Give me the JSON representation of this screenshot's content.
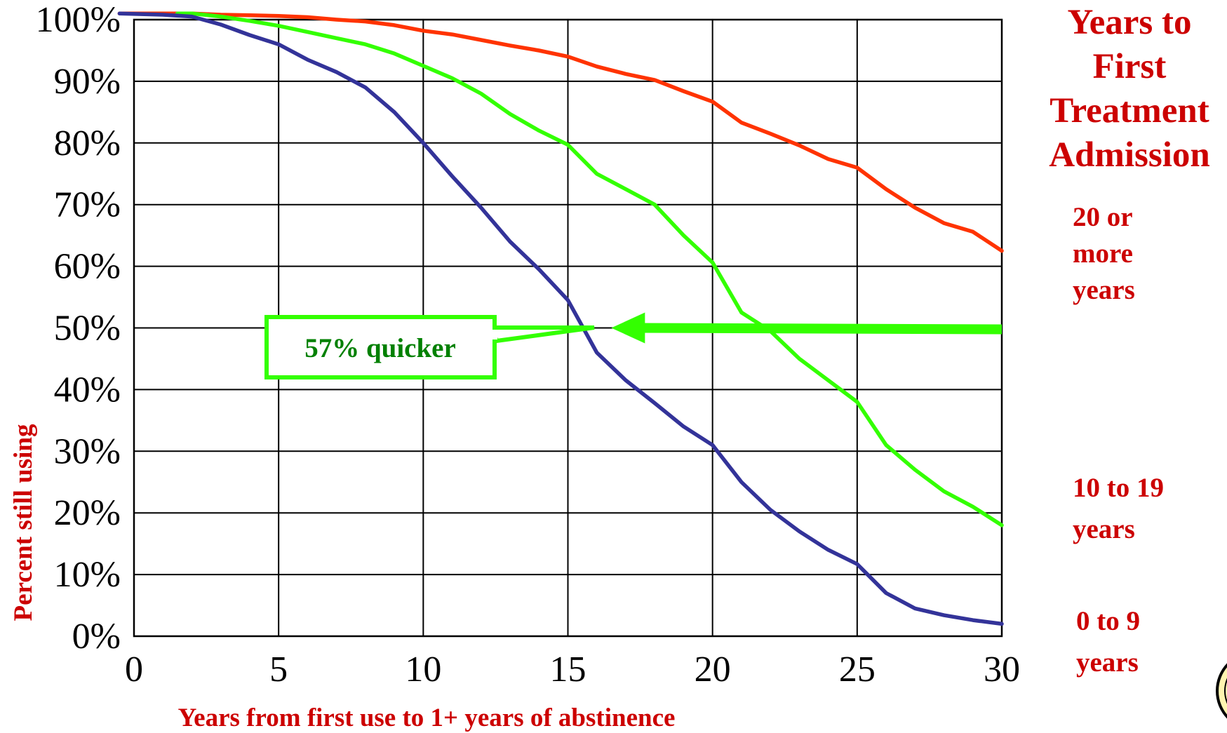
{
  "chart_data": {
    "type": "line",
    "title": "",
    "xlabel": "Years from first use to 1+ years of abstinence",
    "ylabel": "Percent still using",
    "xlim": [
      0,
      30
    ],
    "ylim": [
      0,
      100
    ],
    "x_ticks": [
      "0",
      "5",
      "10",
      "15",
      "20",
      "25",
      "30"
    ],
    "x_tick_values": [
      0,
      5,
      10,
      15,
      20,
      25,
      30
    ],
    "y_ticks": [
      "0%",
      "10%",
      "20%",
      "30%",
      "40%",
      "50%",
      "60%",
      "70%",
      "80%",
      "90%",
      "100%"
    ],
    "y_tick_values": [
      0,
      10,
      20,
      30,
      40,
      50,
      60,
      70,
      80,
      90,
      100
    ],
    "grid": true,
    "legend": {
      "title": "Years to First Treatment Admission",
      "title_lines": [
        "Years to",
        "First",
        "Treatment",
        "Admission"
      ],
      "placement": "right"
    },
    "series": [
      {
        "name": "20 or more years",
        "label_lines": [
          "20 or",
          "more",
          "years"
        ],
        "color": "#ff3300",
        "x": [
          -0.5,
          1,
          2,
          3,
          4,
          5,
          6,
          7,
          8,
          9,
          10,
          11,
          12,
          13,
          14,
          15,
          16,
          17,
          18,
          19,
          20,
          21,
          22,
          23,
          24,
          25,
          26,
          27,
          28,
          29,
          30
        ],
        "y": [
          101,
          101,
          101,
          100.8,
          100.7,
          100.6,
          100.4,
          100,
          99.7,
          99.1,
          98.2,
          97.6,
          96.7,
          95.8,
          95,
          94,
          92.4,
          91.2,
          90.2,
          88.4,
          86.7,
          83.3,
          81.5,
          79.6,
          77.4,
          76,
          72.5,
          69.5,
          67,
          65.6,
          62.5
        ]
      },
      {
        "name": "10 to 19 years",
        "label_lines": [
          "10 to 19",
          "years"
        ],
        "color": "#33ff00",
        "x": [
          1.5,
          2,
          3,
          4,
          5,
          6,
          7,
          8,
          9,
          10,
          11,
          12,
          13,
          14,
          15,
          16,
          17,
          18,
          19,
          20,
          21,
          22,
          23,
          24,
          25,
          26,
          27,
          28,
          29,
          30
        ],
        "y": [
          101,
          101,
          100.5,
          99.8,
          99,
          98,
          97,
          96,
          94.5,
          92.5,
          90.5,
          88,
          84.7,
          82,
          79.7,
          75,
          72.5,
          70,
          65,
          60.6,
          52.5,
          49.5,
          45,
          41.5,
          38,
          31,
          27,
          23.5,
          21,
          18
        ]
      },
      {
        "name": "0 to 9 years",
        "label_lines": [
          "0 to 9",
          "years"
        ],
        "color": "#333399",
        "x": [
          -0.5,
          1,
          2,
          3,
          4,
          5,
          6,
          7,
          8,
          9,
          10,
          11,
          12,
          13,
          14,
          15,
          16,
          17,
          18,
          19,
          20,
          21,
          22,
          23,
          24,
          25,
          26,
          27,
          28,
          29,
          30
        ],
        "y": [
          101,
          100.8,
          100.5,
          99.2,
          97.5,
          96,
          93.5,
          91.5,
          89,
          85,
          80,
          74.6,
          69.5,
          64,
          59.5,
          54.5,
          46,
          41.5,
          37.8,
          34,
          31,
          25,
          20.5,
          17,
          14,
          11.7,
          7,
          4.5,
          3.4,
          2.6,
          2
        ]
      }
    ],
    "annotations": [
      {
        "text": "57% quicker",
        "color": "#008000",
        "arrow_color": "#33ff00",
        "arrow_from": [
          30,
          50
        ],
        "arrow_to": [
          16.5,
          50
        ]
      }
    ]
  }
}
